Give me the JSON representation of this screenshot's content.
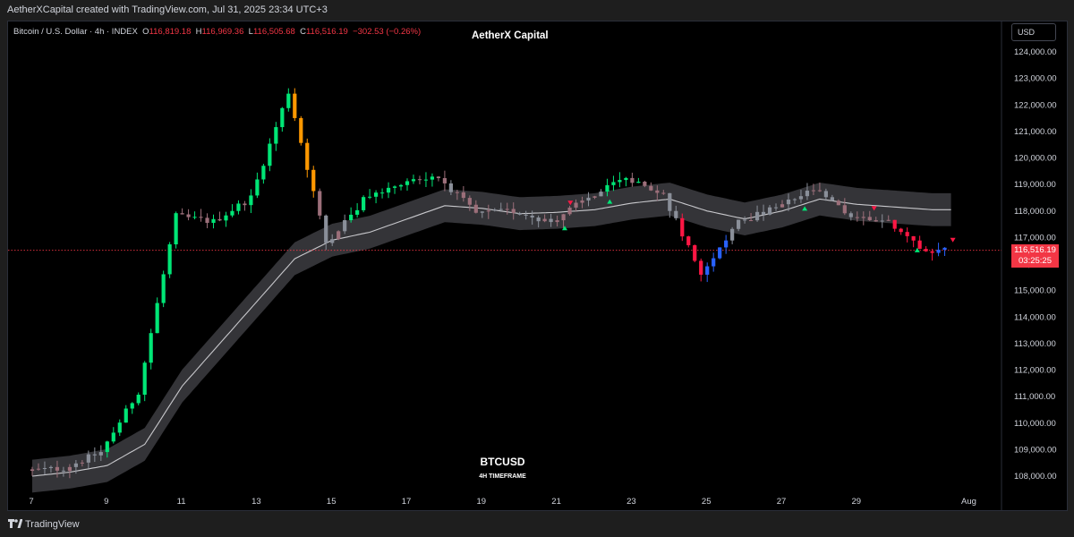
{
  "header": {
    "created_text": "AetherXCapital created with TradingView.com, Jul 31, 2025 23:34 UTC+3"
  },
  "legend": {
    "symbol": "Bitcoin / U.S. Dollar · 4h · INDEX",
    "o_label": "O",
    "o_value": "116,819.18",
    "h_label": "H",
    "h_value": "116,969.36",
    "l_label": "L",
    "l_value": "116,505.68",
    "c_label": "C",
    "c_value": "116,516.19",
    "change": "−302.53 (−0.26%)"
  },
  "brand_title": "AetherX Capital",
  "watermark": {
    "symbol": "BTCUSD",
    "timeframe": "4H TIMEFRAME"
  },
  "currency_button": "USD",
  "last_price": {
    "price": "116,516.19",
    "countdown": "03:25:25"
  },
  "footer": {
    "brand": "TradingView"
  },
  "colors": {
    "up": "#00e676",
    "down": "#ff1744",
    "orange": "#ff9800",
    "yellow": "#e0e046",
    "neutral": "#8a8f99",
    "mauve": "#9c6f7a",
    "blue": "#2962ff",
    "band": "#3a3a3e",
    "price_line": "#f23645"
  },
  "chart_data": {
    "type": "candlestick",
    "title": "Bitcoin / U.S. Dollar · 4h · INDEX",
    "timeframe": "4h",
    "x_tick_labels": [
      "7",
      "9",
      "11",
      "13",
      "15",
      "17",
      "19",
      "21",
      "23",
      "25",
      "27",
      "29",
      "Aug"
    ],
    "y_tick_labels": [
      "124,000.00",
      "123,000.00",
      "122,000.00",
      "121,000.00",
      "120,000.00",
      "119,000.00",
      "118,000.00",
      "117,000.00",
      "116,000.00",
      "115,000.00",
      "114,000.00",
      "113,000.00",
      "112,000.00",
      "111,000.00",
      "110,000.00",
      "109,000.00",
      "108,000.00"
    ],
    "ylim": [
      107600,
      124600
    ],
    "last_close": 116516.19,
    "series": [
      {
        "name": "BTCUSD",
        "type": "candlestick",
        "approx_closes_by_day": [
          {
            "day": "Jul 7",
            "close": 108200
          },
          {
            "day": "Jul 8",
            "close": 108300
          },
          {
            "day": "Jul 9",
            "close": 108900
          },
          {
            "day": "Jul 10",
            "close": 111200
          },
          {
            "day": "Jul 11",
            "close": 117800
          },
          {
            "day": "Jul 12",
            "close": 117600
          },
          {
            "day": "Jul 13",
            "close": 118500
          },
          {
            "day": "Jul 14",
            "close": 122500
          },
          {
            "day": "Jul 15",
            "close": 116800
          },
          {
            "day": "Jul 16",
            "close": 118400
          },
          {
            "day": "Jul 17",
            "close": 119100
          },
          {
            "day": "Jul 18",
            "close": 119300
          },
          {
            "day": "Jul 19",
            "close": 117900
          },
          {
            "day": "Jul 20",
            "close": 118000
          },
          {
            "day": "Jul 21",
            "close": 117600
          },
          {
            "day": "Jul 22",
            "close": 118500
          },
          {
            "day": "Jul 23",
            "close": 119200
          },
          {
            "day": "Jul 24",
            "close": 118600
          },
          {
            "day": "Jul 25",
            "close": 115700
          },
          {
            "day": "Jul 26",
            "close": 117600
          },
          {
            "day": "Jul 27",
            "close": 118100
          },
          {
            "day": "Jul 28",
            "close": 118800
          },
          {
            "day": "Jul 29",
            "close": 117800
          },
          {
            "day": "Jul 30",
            "close": 117600
          },
          {
            "day": "Jul 31",
            "close": 116516
          }
        ]
      },
      {
        "name": "Baseline band (center)",
        "type": "line",
        "approx_values_by_day": [
          {
            "day": "Jul 7",
            "value": 108000
          },
          {
            "day": "Jul 8",
            "value": 108150
          },
          {
            "day": "Jul 9",
            "value": 108400
          },
          {
            "day": "Jul 10",
            "value": 109200
          },
          {
            "day": "Jul 11",
            "value": 111400
          },
          {
            "day": "Jul 12",
            "value": 113000
          },
          {
            "day": "Jul 13",
            "value": 114600
          },
          {
            "day": "Jul 14",
            "value": 116200
          },
          {
            "day": "Jul 15",
            "value": 116900
          },
          {
            "day": "Jul 16",
            "value": 117200
          },
          {
            "day": "Jul 17",
            "value": 117700
          },
          {
            "day": "Jul 18",
            "value": 118200
          },
          {
            "day": "Jul 19",
            "value": 118100
          },
          {
            "day": "Jul 20",
            "value": 117900
          },
          {
            "day": "Jul 21",
            "value": 117950
          },
          {
            "day": "Jul 22",
            "value": 118050
          },
          {
            "day": "Jul 23",
            "value": 118300
          },
          {
            "day": "Jul 24",
            "value": 118450
          },
          {
            "day": "Jul 25",
            "value": 118000
          },
          {
            "day": "Jul 26",
            "value": 117700
          },
          {
            "day": "Jul 27",
            "value": 118000
          },
          {
            "day": "Jul 28",
            "value": 118450
          },
          {
            "day": "Jul 29",
            "value": 118250
          },
          {
            "day": "Jul 30",
            "value": 118150
          },
          {
            "day": "Jul 31",
            "value": 118050
          }
        ]
      }
    ],
    "signals": [
      {
        "type": "buy",
        "day": "Jul 21"
      },
      {
        "type": "buy",
        "day": "Jul 22"
      },
      {
        "type": "buy",
        "day": "Jul 27"
      },
      {
        "type": "buy",
        "day": "Jul 30"
      },
      {
        "type": "sell",
        "day": "Jul 21"
      },
      {
        "type": "sell",
        "day": "Jul 29"
      },
      {
        "type": "sell",
        "day": "Jul 31"
      }
    ]
  }
}
